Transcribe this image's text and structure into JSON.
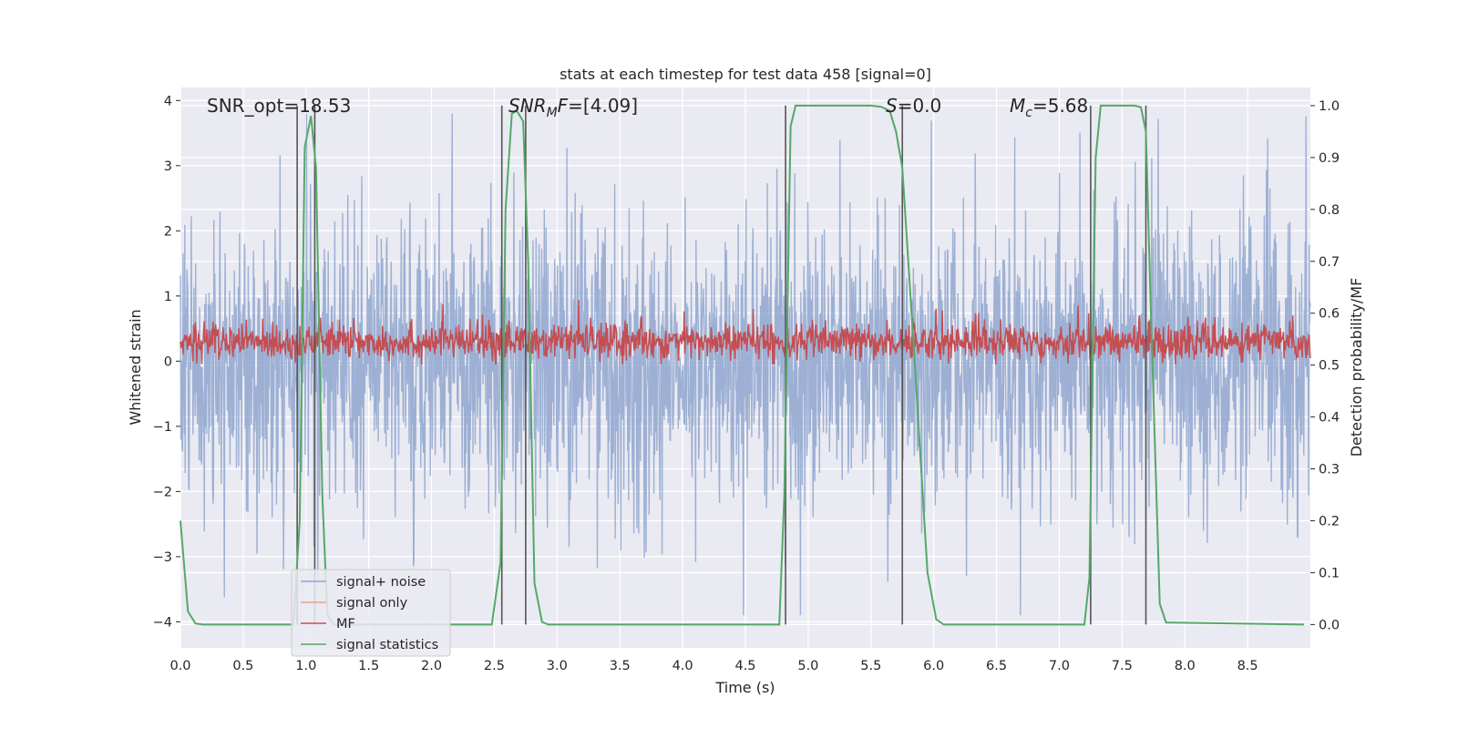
{
  "chart_data": {
    "type": "line",
    "title": "stats at each timestep for test data 458 [signal=0]",
    "xlabel": "Time (s)",
    "ylabel": "Whitened strain",
    "y2label": "Detection probability/MF",
    "xlim": [
      0,
      9.0
    ],
    "ylim": [
      -4.4,
      4.2
    ],
    "y2lim": [
      -0.045,
      1.035
    ],
    "x_ticks": [
      "0.0",
      "0.5",
      "1.0",
      "1.5",
      "2.0",
      "2.5",
      "3.0",
      "3.5",
      "4.0",
      "4.5",
      "5.0",
      "5.5",
      "6.0",
      "6.5",
      "7.0",
      "7.5",
      "8.0",
      "8.5"
    ],
    "y_ticks": [
      "−4",
      "−3",
      "−2",
      "−1",
      "0",
      "1",
      "2",
      "3",
      "4"
    ],
    "y2_ticks": [
      "0.0",
      "0.1",
      "0.2",
      "0.3",
      "0.4",
      "0.5",
      "0.6",
      "0.7",
      "0.8",
      "0.9",
      "1.0"
    ],
    "grid": true,
    "legend_position": "lower-left",
    "annotations": {
      "snr_opt": "SNR_opt=18.53",
      "snr_mf": "=[4.09]",
      "s": "=0.0",
      "mc": "=5.68"
    },
    "series": [
      {
        "name": "signal+ noise",
        "color": "#8fa6cf",
        "kind": "noise",
        "axis": "left",
        "typical_range": [
          -2.5,
          2.8
        ],
        "extreme_range": [
          -3.9,
          3.8
        ]
      },
      {
        "name": "signal only",
        "color": "#e8a58a",
        "kind": "flat",
        "axis": "left",
        "value": 0
      },
      {
        "name": "MF",
        "color": "#c44e52",
        "kind": "noise",
        "axis": "left",
        "typical_range": [
          0.0,
          0.65
        ],
        "extreme_range": [
          -0.05,
          1.0
        ]
      },
      {
        "name": "signal statistics",
        "color": "#55a868",
        "kind": "line",
        "axis": "right",
        "x": [
          0.0,
          0.06,
          0.12,
          0.18,
          0.9,
          0.95,
          0.99,
          1.04,
          1.08,
          1.13,
          1.17,
          1.22,
          2.48,
          2.55,
          2.59,
          2.64,
          2.68,
          2.73,
          2.77,
          2.82,
          2.88,
          2.93,
          4.77,
          4.81,
          4.86,
          4.9,
          5.5,
          5.58,
          5.65,
          5.7,
          5.75,
          5.85,
          5.95,
          6.02,
          6.08,
          7.2,
          7.24,
          7.29,
          7.33,
          7.6,
          7.65,
          7.69,
          7.73,
          7.8,
          7.85,
          8.95
        ],
        "y": [
          0.2,
          0.025,
          0.002,
          0.0,
          0.0,
          0.2,
          0.92,
          0.98,
          0.88,
          0.25,
          0.02,
          0.0,
          0.0,
          0.12,
          0.8,
          0.985,
          0.99,
          0.97,
          0.7,
          0.08,
          0.005,
          0.0,
          0.0,
          0.25,
          0.96,
          1.0,
          1.0,
          0.998,
          0.99,
          0.95,
          0.88,
          0.5,
          0.1,
          0.01,
          0.0,
          0.0,
          0.09,
          0.9,
          1.0,
          1.0,
          0.997,
          0.95,
          0.6,
          0.04,
          0.004,
          0.0
        ]
      }
    ],
    "vertical_markers": [
      0.93,
      1.07,
      2.56,
      2.75,
      4.82,
      5.75,
      7.25,
      7.69
    ]
  }
}
